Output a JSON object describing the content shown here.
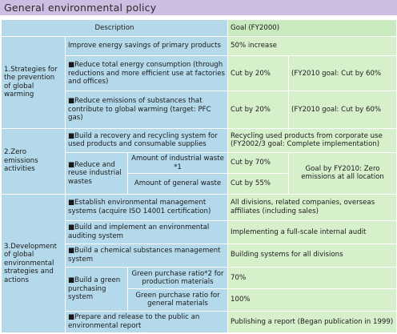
{
  "title": "General environmental policy",
  "header": {
    "description": "Description",
    "goal": "Goal (FY2000)"
  },
  "cat1": {
    "label": "1.Strategies for the prevention of global warming",
    "row1": {
      "desc": "Improve energy savings of primary products",
      "goal": "50% increase"
    },
    "row2": {
      "desc": "■Reduce total energy consumption (through reductions and more efficient use at factories and offices)",
      "goal": "Cut by 20%",
      "goal_2010": "(FY2010 goal: Cut by 60%"
    },
    "row3": {
      "desc": "■Reduce emissions of substances that contribute to global warming (target: PFC gas)",
      "goal": "Cut by 20%",
      "goal_2010": "(FY2010 goal: Cut by 60%"
    }
  },
  "cat2": {
    "label": "2.Zero emissions activities",
    "row1": {
      "desc": "■Build a recovery and recycling system for used products and consumable supplies",
      "goal": "Recycling used products from corporate use (FY2002/3 goal: Complete implementation)"
    },
    "reduce": {
      "label": "■Reduce and reuse industrial wastes",
      "sub1": {
        "desc": "Amount of industrial waste *1",
        "goal": "Cut by 70%"
      },
      "sub2": {
        "desc": "Amount of general waste",
        "goal": "Cut by 55%"
      },
      "goal_2010": "Goal by FY2010: Zero emissions at all location"
    }
  },
  "cat3": {
    "label": "3.Development of global environmental strategies and actions",
    "row1": {
      "desc": "■Establish environmental management systems (acquire ISO 14001 certification)",
      "goal": "All divisions, related companies, overseas affiliates (including sales)"
    },
    "row2": {
      "desc": "■Build and implement an environmental auditing system",
      "goal": "Implementing a full-scale internal audit"
    },
    "row3": {
      "desc": "■Build a chemical substances management system",
      "goal": "Building systems for all divisions"
    },
    "green": {
      "label": "■Build a green purchasing system",
      "sub1": {
        "desc": "Green purchase ratio*2 for production materials",
        "goal": "70%"
      },
      "sub2": {
        "desc": "Green purchase ratio for general materials",
        "goal": "100%"
      }
    },
    "row5": {
      "desc": "■Prepare and release to the public an environmental report",
      "goal": "Publishing a report (Began publication in 1999)"
    }
  }
}
